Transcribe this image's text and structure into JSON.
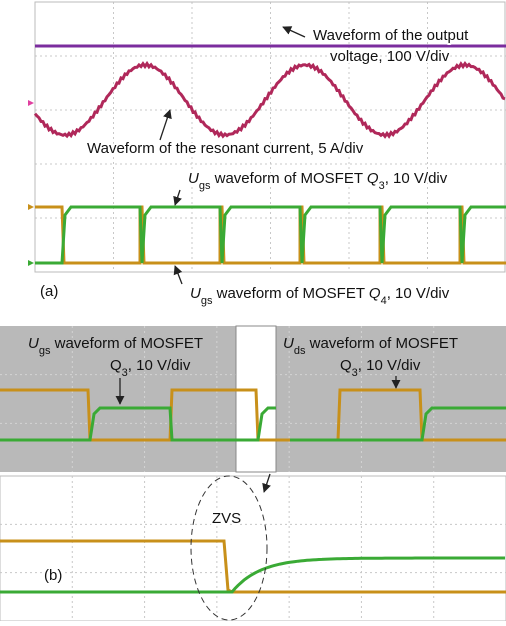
{
  "panel_a": {
    "label": "(a)",
    "annotations": [
      {
        "lines": [
          [
            "Waveform of the output"
          ],
          [
            "voltage, 100 V/div"
          ]
        ]
      },
      {
        "lines": [
          [
            "Waveform of the resonant current, 5 A/div"
          ]
        ]
      },
      {
        "lines": [
          [
            {
              "italic": "U"
            },
            {
              "sub": "gs"
            },
            " waveform of MOSFET ",
            {
              "italic": "Q"
            },
            {
              "sub": "3"
            },
            ", 10 V/div"
          ]
        ]
      },
      {
        "lines": [
          [
            {
              "italic": "U"
            },
            {
              "sub": "gs"
            },
            " waveform of MOSFET ",
            {
              "italic": "Q"
            },
            {
              "sub": "4"
            },
            ", 10 V/div"
          ]
        ]
      }
    ]
  },
  "panel_b": {
    "label": "(b)",
    "annotations": [
      {
        "lines": [
          [
            {
              "italic": "U"
            },
            {
              "sub": "gs"
            },
            " waveform of MOSFET"
          ],
          [
            "Q",
            {
              "sub": "3"
            },
            ", 10 V/div"
          ]
        ]
      },
      {
        "lines": [
          [
            {
              "italic": "U"
            },
            {
              "sub": "ds"
            },
            " waveform of MOSFET"
          ],
          [
            "Q",
            {
              "sub": "3"
            },
            ", 10 V/div"
          ]
        ]
      },
      {
        "lines": [
          [
            "ZVS"
          ]
        ]
      }
    ]
  }
}
